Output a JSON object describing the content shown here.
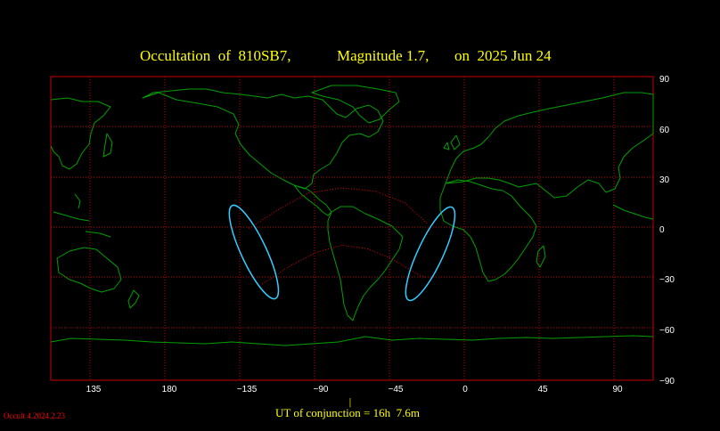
{
  "title": {
    "object_label": "Occultation  of  810SB7,",
    "magnitude_label": "Magnitude 1.7,",
    "date_label": "on  2025 Jun 24"
  },
  "longitude_ticks": [
    "135",
    "180",
    "−135",
    "−90",
    "−45",
    "0",
    "45",
    "90"
  ],
  "latitude_ticks": [
    "90",
    "60",
    "30",
    "0",
    "−30",
    "−60",
    "−90"
  ],
  "conjunction": {
    "marker": "|",
    "label": "UT of conjunction = 16h  7.6m"
  },
  "software_version": "Occult 4.2024.2.23",
  "colors": {
    "background": "#000000",
    "title": "#ffff00",
    "grid": "#c80000",
    "dotted": "#e00000",
    "coastline": "#00a000",
    "ellipse": "#33ccff",
    "axis_text": "#ffffff",
    "version_text": "#ff0000"
  },
  "map_data": {
    "projection": "equirectangular",
    "longitude_range": [
      110,
      115
    ],
    "latitude_range": [
      -90,
      90
    ],
    "longitude_gridlines": [
      135,
      180,
      -135,
      -90,
      -45,
      0,
      45,
      90
    ],
    "latitude_gridlines": [
      90,
      60,
      30,
      0,
      -30,
      -60,
      -90
    ],
    "ellipses": [
      {
        "name": "west-ellipse",
        "center_lon": -128,
        "center_lat": -14,
        "semi_major_deg": 16,
        "semi_minor_deg": 4,
        "tilt_deg": 60
      },
      {
        "name": "east-ellipse",
        "center_lon": -22,
        "center_lat": -15,
        "semi_major_deg": 16,
        "semi_minor_deg": 4,
        "tilt_deg": -60
      }
    ],
    "dotted_paths": [
      {
        "name": "north-limit-path",
        "points": [
          [
            -131,
            0
          ],
          [
            -112,
            12
          ],
          [
            -95,
            21
          ],
          [
            -75,
            24
          ],
          [
            -55,
            22
          ],
          [
            -37,
            15
          ],
          [
            -24,
            3
          ]
        ]
      },
      {
        "name": "south-limit-path",
        "points": [
          [
            -123,
            -33
          ],
          [
            -106,
            -22
          ],
          [
            -90,
            -14
          ],
          [
            -75,
            -10
          ],
          [
            -60,
            -12
          ],
          [
            -45,
            -18
          ],
          [
            -30,
            -27
          ],
          [
            -25,
            -29
          ]
        ]
      }
    ]
  }
}
